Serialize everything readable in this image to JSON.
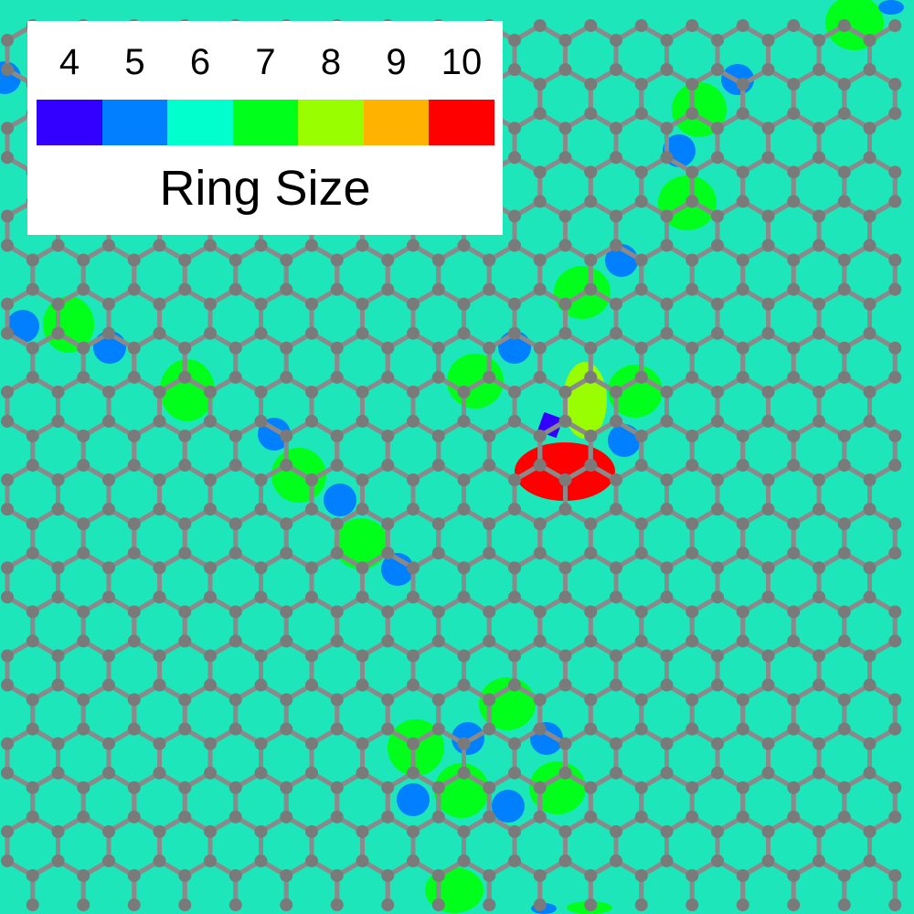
{
  "legend": {
    "title": "Ring Size",
    "entries": [
      {
        "label": "4",
        "color": "#3300ff"
      },
      {
        "label": "5",
        "color": "#007fff"
      },
      {
        "label": "6",
        "color": "#00ffcc"
      },
      {
        "label": "7",
        "color": "#00ff1a"
      },
      {
        "label": "8",
        "color": "#99ff00"
      },
      {
        "label": "9",
        "color": "#ffb300"
      },
      {
        "label": "10",
        "color": "#ff0000"
      }
    ]
  },
  "colors": {
    "ring_6_shaded": "#1ee6bb",
    "atom": "#7a7a7a",
    "bond": "#8a8a8a"
  }
}
